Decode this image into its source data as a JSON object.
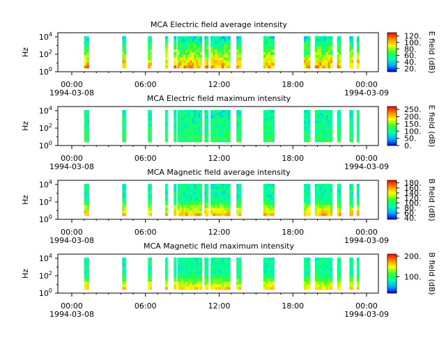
{
  "chart_data": [
    {
      "type": "heatmap",
      "title": "MCA  Electric field average intensity",
      "ylabel": "Hz",
      "y_ticks": [
        "10^0",
        "10^2",
        "10^4"
      ],
      "x_ticks": [
        "00:00",
        "06:00",
        "12:00",
        "18:00",
        "00:00"
      ],
      "x_dates": [
        "1994-03-08",
        "1994-03-09"
      ],
      "xlim": [
        "1994-03-08 00:00",
        "1994-03-09 00:00"
      ],
      "ylim_hz": [
        1,
        30000
      ],
      "colorbar": {
        "label": "E field (dB)",
        "ticks": [
          "20.",
          "40.",
          "60.",
          "80.",
          "100.",
          "120."
        ],
        "range": [
          10,
          130
        ]
      }
    },
    {
      "type": "heatmap",
      "title": "MCA  Electric field maximum intensity",
      "ylabel": "Hz",
      "y_ticks": [
        "10^0",
        "10^2",
        "10^4"
      ],
      "x_ticks": [
        "00:00",
        "06:00",
        "12:00",
        "18:00",
        "00:00"
      ],
      "x_dates": [
        "1994-03-08",
        "1994-03-09"
      ],
      "xlim": [
        "1994-03-08 00:00",
        "1994-03-09 00:00"
      ],
      "ylim_hz": [
        1,
        30000
      ],
      "colorbar": {
        "label": "E field (dB)",
        "ticks": [
          "0.",
          "50.",
          "100.",
          "150.",
          "200.",
          "250."
        ],
        "range": [
          0,
          270
        ]
      }
    },
    {
      "type": "heatmap",
      "title": "MCA  Magnetic field average intensity",
      "ylabel": "Hz",
      "y_ticks": [
        "10^0",
        "10^2",
        "10^4"
      ],
      "x_ticks": [
        "00:00",
        "06:00",
        "12:00",
        "18:00",
        "00:00"
      ],
      "x_dates": [
        "1994-03-08",
        "1994-03-09"
      ],
      "xlim": [
        "1994-03-08 00:00",
        "1994-03-09 00:00"
      ],
      "ylim_hz": [
        1,
        30000
      ],
      "colorbar": {
        "label": "B field (dB)",
        "ticks": [
          "40.",
          "60.",
          "80.",
          "100.",
          "120.",
          "140.",
          "160.",
          "180."
        ],
        "range": [
          35,
          190
        ]
      }
    },
    {
      "type": "heatmap",
      "title": "MCA  Magnetic field maximum intensity",
      "ylabel": "Hz",
      "y_ticks": [
        "10^0",
        "10^2",
        "10^4"
      ],
      "x_ticks": [
        "00:00",
        "06:00",
        "12:00",
        "18:00",
        "00:00"
      ],
      "x_dates": [
        "1994-03-08",
        "1994-03-09"
      ],
      "xlim": [
        "1994-03-08 00:00",
        "1994-03-09 00:00"
      ],
      "ylim_hz": [
        1,
        30000
      ],
      "colorbar": {
        "label": "B field (dB)",
        "ticks": [
          "100.",
          "200."
        ],
        "range": [
          20,
          210
        ]
      }
    }
  ],
  "data_intervals_hours": [
    [
      1.0,
      1.4
    ],
    [
      4.1,
      4.4
    ],
    [
      6.2,
      6.5
    ],
    [
      7.6,
      7.8
    ],
    [
      8.3,
      8.5
    ],
    [
      8.6,
      10.6
    ],
    [
      10.8,
      11.1
    ],
    [
      11.3,
      12.9
    ],
    [
      13.4,
      13.8
    ],
    [
      15.6,
      16.5
    ],
    [
      18.9,
      19.4
    ],
    [
      19.8,
      21.2
    ],
    [
      21.6,
      21.9
    ],
    [
      22.6,
      22.9
    ],
    [
      23.2,
      23.4
    ]
  ],
  "colorscale": [
    "#0000cc",
    "#00aaff",
    "#00ffaa",
    "#33ff33",
    "#ffff00",
    "#ff8800",
    "#ff0000"
  ]
}
